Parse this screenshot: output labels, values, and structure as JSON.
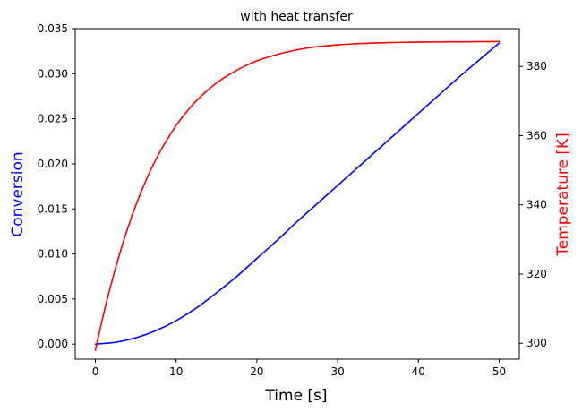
{
  "chart_data": {
    "type": "line",
    "title": "with heat transfer",
    "xlabel": "Time [s]",
    "ylabel_left": "Conversion",
    "ylabel_right": "Temperature [K]",
    "xlim": [
      -2.5,
      52.5
    ],
    "ylim_left": [
      -0.00167,
      0.035
    ],
    "ylim_right": [
      295.4,
      390.9
    ],
    "x_ticks": [
      0,
      10,
      20,
      30,
      40,
      50
    ],
    "x_tick_labels": [
      "0",
      "10",
      "20",
      "30",
      "40",
      "50"
    ],
    "y_left_ticks": [
      0.0,
      0.005,
      0.01,
      0.015,
      0.02,
      0.025,
      0.03,
      0.035
    ],
    "y_left_tick_labels": [
      "0.000",
      "0.005",
      "0.010",
      "0.015",
      "0.020",
      "0.025",
      "0.030",
      "0.035"
    ],
    "y_right_ticks": [
      300,
      320,
      340,
      360,
      380
    ],
    "y_right_tick_labels": [
      "300",
      "320",
      "340",
      "360",
      "380"
    ],
    "grid": false,
    "colors": {
      "conversion": "#0000ff",
      "temperature": "#ff0000",
      "axes": "#000000",
      "background": "#ffffff"
    },
    "series": [
      {
        "axis": "left",
        "color": "#0000ff",
        "x": [
          0,
          2.5,
          5,
          7.5,
          10,
          12.5,
          15,
          17.5,
          20,
          22.5,
          25,
          27.5,
          30,
          32.5,
          35,
          37.5,
          40,
          42.5,
          45,
          47.5,
          50
        ],
        "values": [
          0.0,
          0.0002,
          0.0007,
          0.0015,
          0.0026,
          0.004,
          0.0057,
          0.0075,
          0.0095,
          0.0115,
          0.0136,
          0.0156,
          0.0176,
          0.0196,
          0.0216,
          0.0236,
          0.0256,
          0.0276,
          0.0296,
          0.0315,
          0.0334
        ]
      },
      {
        "axis": "right",
        "color": "#ff0000",
        "x": [
          0,
          1,
          2,
          3,
          4,
          5,
          6,
          7,
          8,
          9,
          10,
          11,
          12,
          13,
          14,
          15,
          16,
          17,
          18,
          19,
          20,
          22,
          24,
          26,
          28,
          30,
          32,
          34,
          36,
          38,
          40,
          42,
          44,
          46,
          48,
          50
        ],
        "values": [
          298,
          308.3,
          317.5,
          325.8,
          333.2,
          339.8,
          345.6,
          350.8,
          355.3,
          359.3,
          362.9,
          366.0,
          368.8,
          371.2,
          373.3,
          375.2,
          376.8,
          378.2,
          379.5,
          380.6,
          381.6,
          383.1,
          384.3,
          385.2,
          385.8,
          386.2,
          386.5,
          386.7,
          386.85,
          386.95,
          387.0,
          387.05,
          387.1,
          387.1,
          387.15,
          387.2
        ]
      }
    ]
  }
}
